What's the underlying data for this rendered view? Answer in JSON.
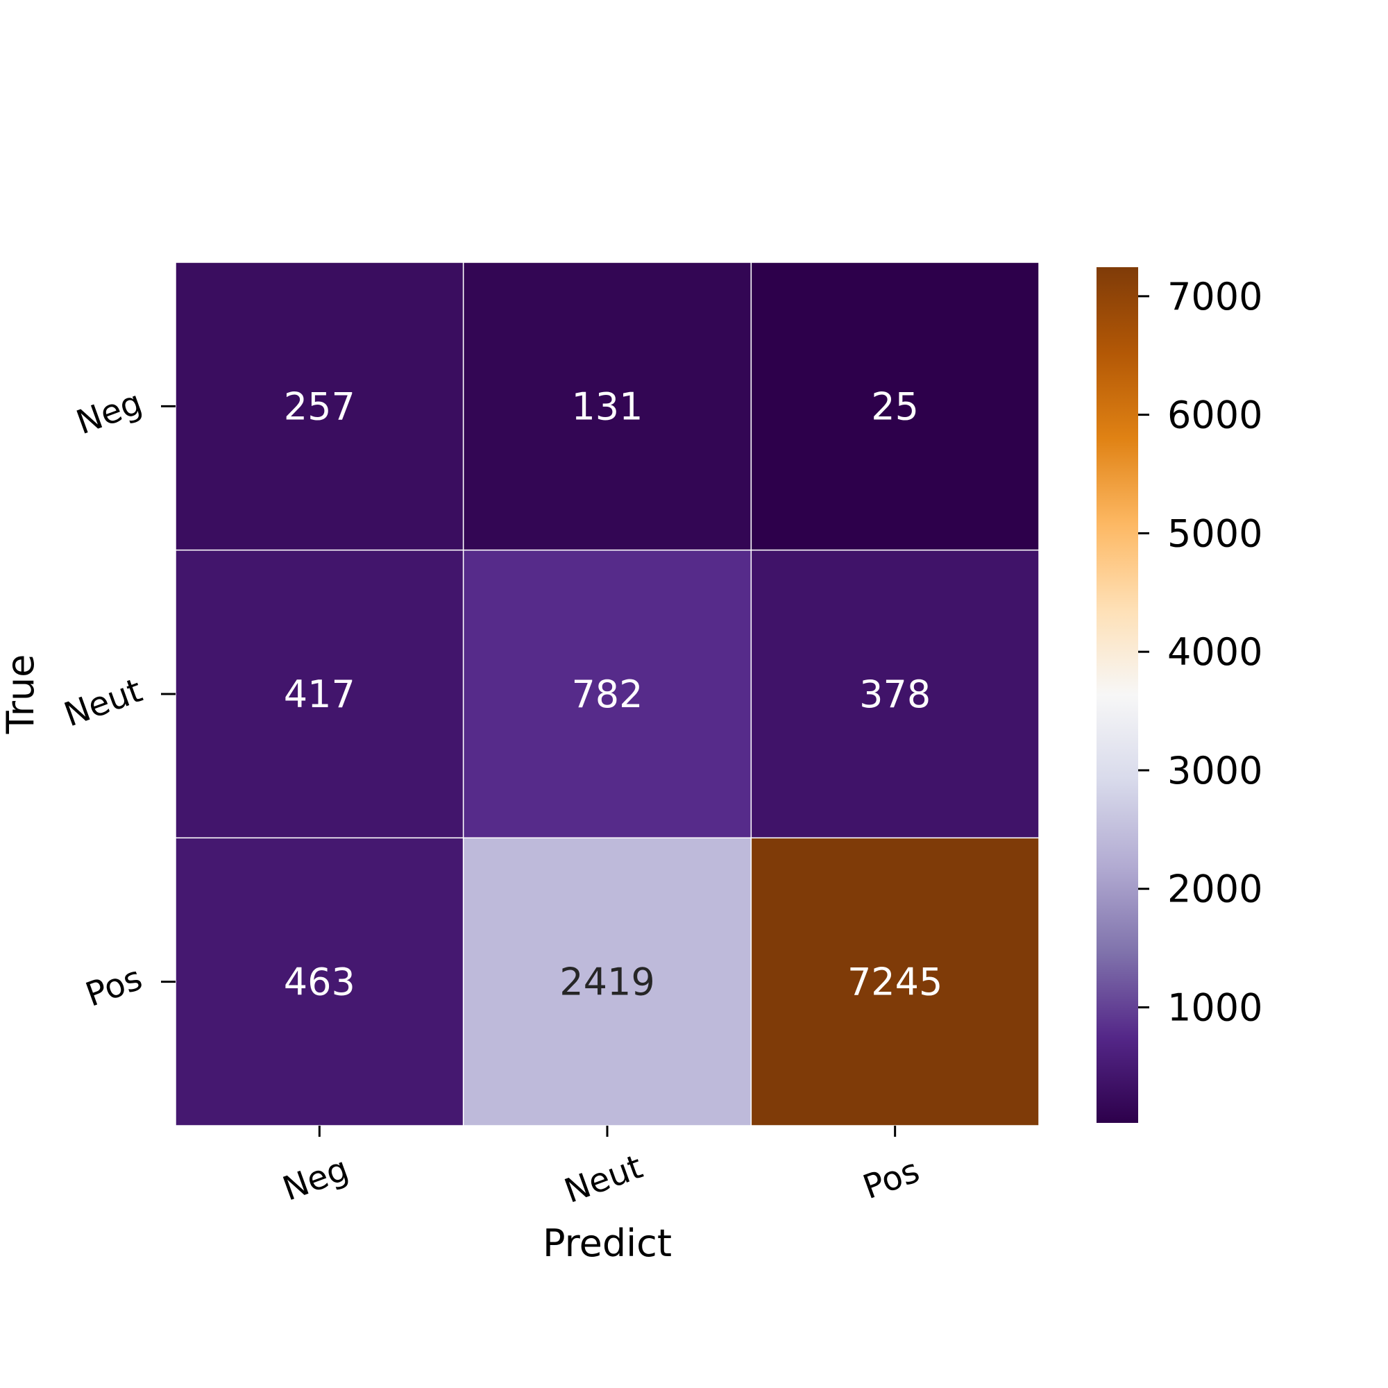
{
  "chart_data": {
    "type": "heatmap",
    "x_categories": [
      "Neg",
      "Neut",
      "Pos"
    ],
    "y_categories": [
      "Neg",
      "Neut",
      "Pos"
    ],
    "values": [
      [
        257,
        131,
        25
      ],
      [
        417,
        782,
        378
      ],
      [
        463,
        2419,
        7245
      ]
    ],
    "xlabel": "Predict",
    "ylabel": "True",
    "title": "",
    "colormap": "PuOr_r",
    "colorbar": {
      "min": 25,
      "max": 7245,
      "ticks": [
        1000,
        2000,
        3000,
        4000,
        5000,
        6000,
        7000
      ],
      "tick_labels": [
        "1000",
        "2000",
        "3000",
        "4000",
        "5000",
        "6000",
        "7000"
      ],
      "stops": [
        {
          "v": 0.0,
          "color": "#2d004b"
        },
        {
          "v": 0.1,
          "color": "#542788"
        },
        {
          "v": 0.2,
          "color": "#8073ac"
        },
        {
          "v": 0.3,
          "color": "#b2abd2"
        },
        {
          "v": 0.4,
          "color": "#d8daeb"
        },
        {
          "v": 0.5,
          "color": "#f7f7f7"
        },
        {
          "v": 0.6,
          "color": "#fee0b6"
        },
        {
          "v": 0.7,
          "color": "#fdb863"
        },
        {
          "v": 0.8,
          "color": "#e08214"
        },
        {
          "v": 0.9,
          "color": "#b35806"
        },
        {
          "v": 1.0,
          "color": "#7f3b08"
        }
      ]
    },
    "tick_label_rotation_deg": 20,
    "cell_text_light": "#ffffff",
    "cell_text_dark": "#262626",
    "grid_line_color": "#ffffff"
  }
}
